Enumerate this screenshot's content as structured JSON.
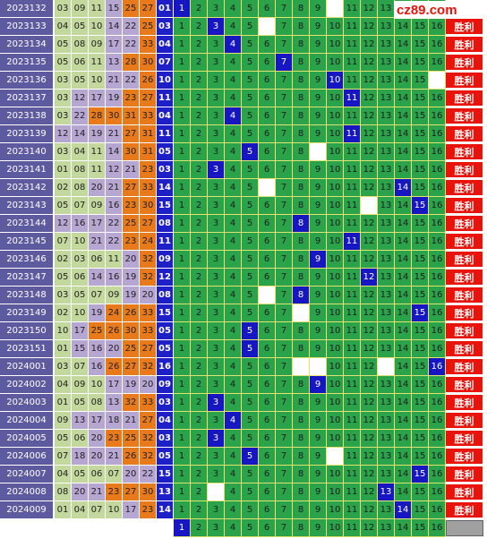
{
  "site_logo": "cz89.com",
  "win_label": "胜利",
  "rows": [
    {
      "period": "2023132",
      "nums": [
        "03",
        "09",
        "11",
        "15",
        "25",
        "27",
        "01"
      ],
      "hit": 1,
      "blanks": [
        10
      ],
      "special": ""
    },
    {
      "period": "2023133",
      "nums": [
        "04",
        "05",
        "10",
        "14",
        "22",
        "25",
        "03"
      ],
      "hit": 3,
      "blanks": [
        6
      ],
      "special": "win"
    },
    {
      "period": "2023134",
      "nums": [
        "05",
        "08",
        "09",
        "17",
        "22",
        "33",
        "04"
      ],
      "hit": 4,
      "blanks": [],
      "special": "win"
    },
    {
      "period": "2023135",
      "nums": [
        "05",
        "06",
        "11",
        "13",
        "28",
        "30",
        "07"
      ],
      "hit": 7,
      "blanks": [],
      "special": "win"
    },
    {
      "period": "2023136",
      "nums": [
        "03",
        "05",
        "10",
        "21",
        "22",
        "26",
        "10"
      ],
      "hit": 10,
      "blanks": [
        16
      ],
      "special": "win"
    },
    {
      "period": "2023137",
      "nums": [
        "03",
        "12",
        "17",
        "19",
        "23",
        "27",
        "11"
      ],
      "hit": 11,
      "blanks": [],
      "special": "win"
    },
    {
      "period": "2023138",
      "nums": [
        "03",
        "22",
        "28",
        "30",
        "31",
        "33",
        "04"
      ],
      "hit": 4,
      "blanks": [],
      "special": "win"
    },
    {
      "period": "2023139",
      "nums": [
        "12",
        "14",
        "19",
        "21",
        "27",
        "31",
        "11"
      ],
      "hit": 11,
      "blanks": [],
      "special": "win"
    },
    {
      "period": "2023140",
      "nums": [
        "03",
        "04",
        "11",
        "14",
        "30",
        "31",
        "05"
      ],
      "hit": 5,
      "blanks": [
        9
      ],
      "special": "win"
    },
    {
      "period": "2023141",
      "nums": [
        "01",
        "08",
        "11",
        "12",
        "21",
        "23",
        "03"
      ],
      "hit": 3,
      "blanks": [],
      "special": "win"
    },
    {
      "period": "2023142",
      "nums": [
        "02",
        "08",
        "20",
        "21",
        "27",
        "33",
        "14"
      ],
      "hit": 14,
      "blanks": [
        6
      ],
      "special": "win"
    },
    {
      "period": "2023143",
      "nums": [
        "05",
        "07",
        "09",
        "16",
        "23",
        "30",
        "15"
      ],
      "hit": 15,
      "blanks": [
        12
      ],
      "special": "win"
    },
    {
      "period": "2023144",
      "nums": [
        "12",
        "16",
        "17",
        "22",
        "25",
        "27",
        "08"
      ],
      "hit": 8,
      "blanks": [],
      "special": "win"
    },
    {
      "period": "2023145",
      "nums": [
        "07",
        "10",
        "21",
        "22",
        "23",
        "24",
        "11"
      ],
      "hit": 11,
      "blanks": [],
      "special": "win"
    },
    {
      "period": "2023146",
      "nums": [
        "02",
        "03",
        "06",
        "11",
        "20",
        "32",
        "09"
      ],
      "hit": 9,
      "blanks": [],
      "special": "win"
    },
    {
      "period": "2023147",
      "nums": [
        "05",
        "06",
        "14",
        "16",
        "19",
        "32",
        "12"
      ],
      "hit": 12,
      "blanks": [],
      "special": "win"
    },
    {
      "period": "2023148",
      "nums": [
        "03",
        "05",
        "07",
        "09",
        "19",
        "20",
        "08"
      ],
      "hit": 8,
      "blanks": [
        6
      ],
      "special": "win"
    },
    {
      "period": "2023149",
      "nums": [
        "02",
        "10",
        "19",
        "24",
        "26",
        "33",
        "15"
      ],
      "hit": 15,
      "blanks": [
        8
      ],
      "special": "win"
    },
    {
      "period": "2023150",
      "nums": [
        "10",
        "17",
        "25",
        "26",
        "30",
        "33",
        "05"
      ],
      "hit": 5,
      "blanks": [],
      "special": "win"
    },
    {
      "period": "2023151",
      "nums": [
        "01",
        "15",
        "16",
        "20",
        "25",
        "27",
        "05"
      ],
      "hit": 5,
      "blanks": [],
      "special": "win"
    },
    {
      "period": "2024001",
      "nums": [
        "03",
        "07",
        "16",
        "26",
        "27",
        "32",
        "16"
      ],
      "hit": 16,
      "blanks": [
        8,
        9,
        13
      ],
      "special": "win"
    },
    {
      "period": "2024002",
      "nums": [
        "04",
        "09",
        "10",
        "17",
        "19",
        "20",
        "09"
      ],
      "hit": 9,
      "blanks": [],
      "special": "win"
    },
    {
      "period": "2024003",
      "nums": [
        "01",
        "05",
        "08",
        "13",
        "32",
        "33",
        "03"
      ],
      "hit": 3,
      "blanks": [],
      "special": "win"
    },
    {
      "period": "2024004",
      "nums": [
        "09",
        "13",
        "17",
        "18",
        "21",
        "27",
        "04"
      ],
      "hit": 4,
      "blanks": [],
      "special": "win"
    },
    {
      "period": "2024005",
      "nums": [
        "05",
        "06",
        "20",
        "23",
        "25",
        "32",
        "03"
      ],
      "hit": 3,
      "blanks": [],
      "special": "win"
    },
    {
      "period": "2024006",
      "nums": [
        "07",
        "18",
        "20",
        "21",
        "26",
        "32",
        "05"
      ],
      "hit": 5,
      "blanks": [
        10
      ],
      "special": "win"
    },
    {
      "period": "2024007",
      "nums": [
        "04",
        "05",
        "06",
        "07",
        "20",
        "22",
        "15"
      ],
      "hit": 15,
      "blanks": [],
      "special": "win"
    },
    {
      "period": "2024008",
      "nums": [
        "08",
        "20",
        "21",
        "23",
        "27",
        "30",
        "13"
      ],
      "hit": 13,
      "blanks": [
        3
      ],
      "special": "win"
    },
    {
      "period": "2024009",
      "nums": [
        "01",
        "04",
        "07",
        "10",
        "17",
        "23",
        "14"
      ],
      "hit": 14,
      "blanks": [],
      "special": "win"
    },
    {
      "period": "",
      "nums": [
        "",
        "",
        "",
        "",
        "",
        "",
        ""
      ],
      "hit": 1,
      "blanks": [],
      "special": "gray"
    }
  ]
}
